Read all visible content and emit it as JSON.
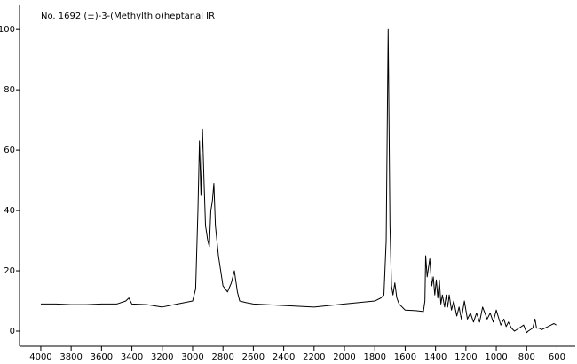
{
  "chart_data": {
    "type": "line",
    "title": "No. 1692 (±)-3-(Methylthio)heptanal IR",
    "x": [
      4000,
      3900,
      3800,
      3700,
      3600,
      3500,
      3440,
      3420,
      3400,
      3300,
      3200,
      3100,
      3000,
      2980,
      2965,
      2955,
      2945,
      2935,
      2925,
      2915,
      2900,
      2890,
      2880,
      2870,
      2860,
      2850,
      2830,
      2800,
      2770,
      2745,
      2725,
      2705,
      2690,
      2650,
      2600,
      2400,
      2200,
      2000,
      1800,
      1760,
      1740,
      1725,
      1712,
      1700,
      1690,
      1680,
      1668,
      1655,
      1640,
      1600,
      1530,
      1480,
      1470,
      1465,
      1455,
      1438,
      1425,
      1415,
      1405,
      1395,
      1385,
      1375,
      1365,
      1355,
      1340,
      1330,
      1320,
      1310,
      1295,
      1280,
      1260,
      1245,
      1230,
      1210,
      1190,
      1170,
      1150,
      1130,
      1110,
      1090,
      1060,
      1040,
      1020,
      1000,
      970,
      950,
      935,
      920,
      900,
      880,
      850,
      820,
      800,
      790,
      760,
      745,
      735,
      720,
      700,
      680,
      660,
      640,
      620,
      605
    ],
    "values": [
      9,
      9,
      8.8,
      8.8,
      9,
      9,
      10,
      11,
      9,
      8.8,
      8,
      9,
      10,
      14,
      40,
      63,
      45,
      67,
      50,
      35,
      30,
      28,
      40,
      43,
      49,
      35,
      25,
      15,
      13,
      16,
      20,
      13,
      10,
      9.5,
      9,
      8.5,
      8,
      9,
      10,
      11,
      12,
      30,
      100,
      35,
      15,
      12,
      16,
      11,
      9,
      7,
      6.8,
      6.5,
      10,
      25,
      18,
      24,
      15,
      18,
      12,
      17,
      11,
      17,
      9,
      12,
      8,
      12,
      8,
      12,
      7,
      10,
      5,
      8,
      4,
      10,
      4,
      6,
      3,
      6,
      3,
      8,
      4,
      6,
      3,
      7,
      2,
      4,
      1.5,
      3,
      1,
      0,
      1,
      2,
      -0.5,
      0,
      1,
      4,
      1,
      1,
      0.5,
      1,
      1.5,
      2,
      2.5,
      2
    ],
    "color": "#000000",
    "xlim": [
      4140,
      480
    ],
    "xticks": [
      4000,
      3800,
      3600,
      3400,
      3200,
      3000,
      2800,
      2600,
      2400,
      2200,
      2000,
      1800,
      1600,
      1400,
      1200,
      1000,
      800,
      600
    ],
    "ylim": [
      -5,
      108
    ],
    "yticks": [
      0,
      20,
      40,
      60,
      80,
      100
    ]
  }
}
